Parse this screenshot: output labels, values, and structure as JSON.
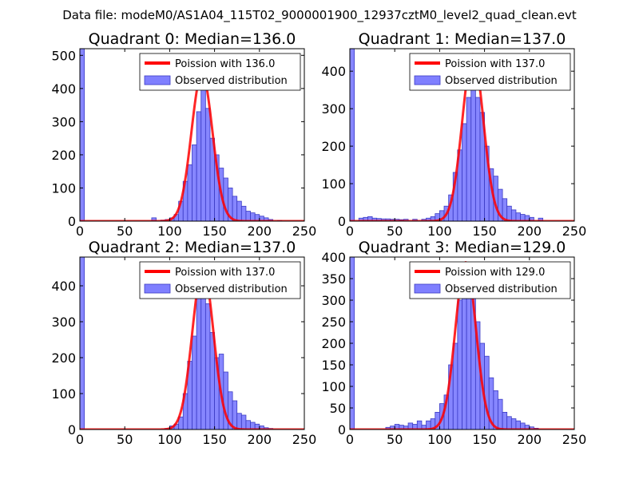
{
  "figure": {
    "suptitle": "Data file: modeM0/AS1A04_115T02_9000001900_12937cztM0_level2_quad_clean.evt"
  },
  "style": {
    "bar_fill": "#7f7fff",
    "bar_edge": "#3b3bc4",
    "curve_color": "#ff0000",
    "axis_color": "#000000"
  },
  "chart_data": [
    {
      "type": "bar+line",
      "title": "Quadrant 0: Median=136.0",
      "xlim": [
        0,
        250
      ],
      "ylim": [
        0,
        520
      ],
      "xticks": [
        0,
        50,
        100,
        150,
        200,
        250
      ],
      "yticks": [
        0,
        100,
        200,
        300,
        400,
        500
      ],
      "legend": {
        "line_label": "Poission with 136.0",
        "bar_label": "Observed distribution",
        "placement": "top-right"
      },
      "bin_width": 5,
      "bins": [
        {
          "x": 0,
          "count": 520
        },
        {
          "x": 80,
          "count": 10
        },
        {
          "x": 90,
          "count": 3
        },
        {
          "x": 95,
          "count": 5
        },
        {
          "x": 100,
          "count": 10
        },
        {
          "x": 105,
          "count": 20
        },
        {
          "x": 110,
          "count": 60
        },
        {
          "x": 115,
          "count": 120
        },
        {
          "x": 120,
          "count": 170
        },
        {
          "x": 125,
          "count": 230
        },
        {
          "x": 130,
          "count": 330
        },
        {
          "x": 135,
          "count": 400
        },
        {
          "x": 140,
          "count": 340
        },
        {
          "x": 145,
          "count": 250
        },
        {
          "x": 150,
          "count": 200
        },
        {
          "x": 155,
          "count": 160
        },
        {
          "x": 160,
          "count": 130
        },
        {
          "x": 165,
          "count": 100
        },
        {
          "x": 170,
          "count": 75
        },
        {
          "x": 175,
          "count": 60
        },
        {
          "x": 180,
          "count": 45
        },
        {
          "x": 185,
          "count": 30
        },
        {
          "x": 190,
          "count": 25
        },
        {
          "x": 195,
          "count": 20
        },
        {
          "x": 200,
          "count": 15
        },
        {
          "x": 205,
          "count": 10
        },
        {
          "x": 210,
          "count": 5
        },
        {
          "x": 220,
          "count": 2
        }
      ],
      "poisson": {
        "mean": 136.0,
        "peak": 445,
        "sigma": 11.7
      }
    },
    {
      "type": "bar+line",
      "title": "Quadrant 1: Median=137.0",
      "xlim": [
        0,
        250
      ],
      "ylim": [
        0,
        460
      ],
      "xticks": [
        0,
        50,
        100,
        150,
        200,
        250
      ],
      "yticks": [
        0,
        100,
        200,
        300,
        400
      ],
      "legend": {
        "line_label": "Poission with 137.0",
        "bar_label": "Observed distribution",
        "placement": "top-right"
      },
      "bin_width": 5,
      "bins": [
        {
          "x": 0,
          "count": 460
        },
        {
          "x": 10,
          "count": 8
        },
        {
          "x": 15,
          "count": 10
        },
        {
          "x": 20,
          "count": 12
        },
        {
          "x": 25,
          "count": 8
        },
        {
          "x": 30,
          "count": 7
        },
        {
          "x": 35,
          "count": 6
        },
        {
          "x": 40,
          "count": 6
        },
        {
          "x": 45,
          "count": 5
        },
        {
          "x": 50,
          "count": 5
        },
        {
          "x": 55,
          "count": 4
        },
        {
          "x": 60,
          "count": 5
        },
        {
          "x": 70,
          "count": 5
        },
        {
          "x": 80,
          "count": 5
        },
        {
          "x": 85,
          "count": 8
        },
        {
          "x": 90,
          "count": 12
        },
        {
          "x": 95,
          "count": 20
        },
        {
          "x": 100,
          "count": 28
        },
        {
          "x": 105,
          "count": 40
        },
        {
          "x": 110,
          "count": 70
        },
        {
          "x": 115,
          "count": 130
        },
        {
          "x": 120,
          "count": 190
        },
        {
          "x": 125,
          "count": 260
        },
        {
          "x": 130,
          "count": 330
        },
        {
          "x": 135,
          "count": 380
        },
        {
          "x": 140,
          "count": 330
        },
        {
          "x": 145,
          "count": 290
        },
        {
          "x": 150,
          "count": 200
        },
        {
          "x": 155,
          "count": 140
        },
        {
          "x": 160,
          "count": 120
        },
        {
          "x": 165,
          "count": 85
        },
        {
          "x": 170,
          "count": 60
        },
        {
          "x": 175,
          "count": 40
        },
        {
          "x": 180,
          "count": 30
        },
        {
          "x": 185,
          "count": 22
        },
        {
          "x": 190,
          "count": 18
        },
        {
          "x": 195,
          "count": 15
        },
        {
          "x": 200,
          "count": 10
        },
        {
          "x": 210,
          "count": 8
        }
      ],
      "poisson": {
        "mean": 137.0,
        "peak": 445,
        "sigma": 11.7
      }
    },
    {
      "type": "bar+line",
      "title": "Quadrant 2: Median=137.0",
      "xlim": [
        0,
        250
      ],
      "ylim": [
        0,
        480
      ],
      "xticks": [
        0,
        50,
        100,
        150,
        200,
        250
      ],
      "yticks": [
        0,
        100,
        200,
        300,
        400
      ],
      "legend": {
        "line_label": "Poission with 137.0",
        "bar_label": "Observed distribution",
        "placement": "top-right"
      },
      "bin_width": 5,
      "bins": [
        {
          "x": 0,
          "count": 480
        },
        {
          "x": 95,
          "count": 3
        },
        {
          "x": 100,
          "count": 10
        },
        {
          "x": 105,
          "count": 15
        },
        {
          "x": 110,
          "count": 35
        },
        {
          "x": 115,
          "count": 100
        },
        {
          "x": 120,
          "count": 190
        },
        {
          "x": 125,
          "count": 260
        },
        {
          "x": 130,
          "count": 380
        },
        {
          "x": 135,
          "count": 420
        },
        {
          "x": 140,
          "count": 350
        },
        {
          "x": 145,
          "count": 270
        },
        {
          "x": 150,
          "count": 200
        },
        {
          "x": 155,
          "count": 210
        },
        {
          "x": 160,
          "count": 160
        },
        {
          "x": 165,
          "count": 105
        },
        {
          "x": 170,
          "count": 80
        },
        {
          "x": 175,
          "count": 45
        },
        {
          "x": 180,
          "count": 40
        },
        {
          "x": 185,
          "count": 25
        },
        {
          "x": 190,
          "count": 20
        },
        {
          "x": 195,
          "count": 15
        },
        {
          "x": 200,
          "count": 10
        },
        {
          "x": 205,
          "count": 5
        },
        {
          "x": 210,
          "count": 3
        }
      ],
      "poisson": {
        "mean": 137.0,
        "peak": 450,
        "sigma": 11.7
      }
    },
    {
      "type": "bar+line",
      "title": "Quadrant 3: Median=129.0",
      "xlim": [
        0,
        250
      ],
      "ylim": [
        0,
        400
      ],
      "xticks": [
        0,
        50,
        100,
        150,
        200,
        250
      ],
      "yticks": [
        0,
        50,
        100,
        150,
        200,
        250,
        300,
        350,
        400
      ],
      "legend": {
        "line_label": "Poission with 129.0",
        "bar_label": "Observed distribution",
        "placement": "top-right"
      },
      "bin_width": 5,
      "bins": [
        {
          "x": 0,
          "count": 400
        },
        {
          "x": 40,
          "count": 5
        },
        {
          "x": 45,
          "count": 8
        },
        {
          "x": 50,
          "count": 12
        },
        {
          "x": 55,
          "count": 10
        },
        {
          "x": 60,
          "count": 8
        },
        {
          "x": 65,
          "count": 15
        },
        {
          "x": 70,
          "count": 12
        },
        {
          "x": 75,
          "count": 20
        },
        {
          "x": 80,
          "count": 10
        },
        {
          "x": 85,
          "count": 20
        },
        {
          "x": 90,
          "count": 25
        },
        {
          "x": 95,
          "count": 40
        },
        {
          "x": 100,
          "count": 60
        },
        {
          "x": 105,
          "count": 80
        },
        {
          "x": 110,
          "count": 150
        },
        {
          "x": 115,
          "count": 200
        },
        {
          "x": 120,
          "count": 300
        },
        {
          "x": 125,
          "count": 380
        },
        {
          "x": 130,
          "count": 380
        },
        {
          "x": 135,
          "count": 330
        },
        {
          "x": 140,
          "count": 250
        },
        {
          "x": 145,
          "count": 200
        },
        {
          "x": 150,
          "count": 170
        },
        {
          "x": 155,
          "count": 120
        },
        {
          "x": 160,
          "count": 90
        },
        {
          "x": 165,
          "count": 70
        },
        {
          "x": 170,
          "count": 40
        },
        {
          "x": 175,
          "count": 30
        },
        {
          "x": 180,
          "count": 25
        },
        {
          "x": 185,
          "count": 20
        },
        {
          "x": 190,
          "count": 15
        },
        {
          "x": 195,
          "count": 10
        },
        {
          "x": 200,
          "count": 6
        },
        {
          "x": 205,
          "count": 3
        }
      ],
      "poisson": {
        "mean": 129.0,
        "peak": 388,
        "sigma": 11.4
      }
    }
  ]
}
